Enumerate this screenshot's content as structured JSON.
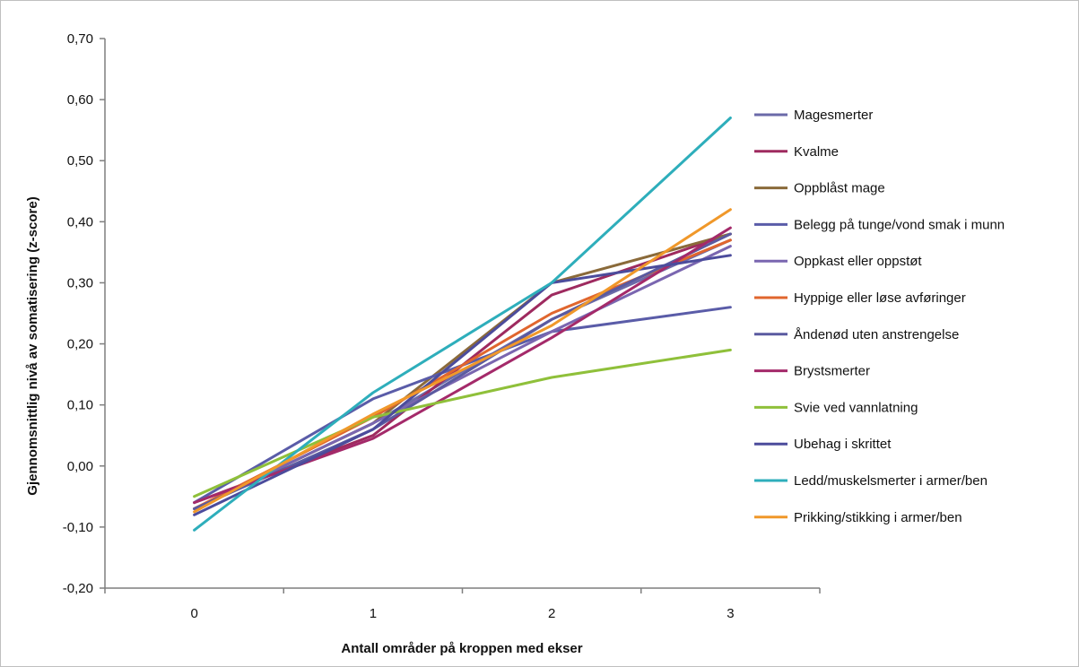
{
  "chart_data": {
    "type": "line",
    "title": "",
    "xlabel": "Antall områder på kroppen med ekser",
    "ylabel": "Gjennomsnittlig nivå av somatisering (z-score)",
    "x": [
      "0",
      "1",
      "2",
      "3"
    ],
    "ylim": [
      -0.2,
      0.7
    ],
    "y_ticks": [
      "-0,20",
      "-0,10",
      "0,00",
      "0,10",
      "0,20",
      "0,30",
      "0,40",
      "0,50",
      "0,60",
      "0,70"
    ],
    "y_tick_values": [
      -0.2,
      -0.1,
      0.0,
      0.1,
      0.2,
      0.3,
      0.4,
      0.5,
      0.6,
      0.7
    ],
    "grid": false,
    "legend_position": "right",
    "series": [
      {
        "name": "Magesmerter",
        "color": "#6b6aa8",
        "values": [
          -0.07,
          0.07,
          0.24,
          0.37
        ]
      },
      {
        "name": "Kvalme",
        "color": "#9e2a5f",
        "values": [
          -0.06,
          0.05,
          0.28,
          0.38
        ]
      },
      {
        "name": "Oppblåst mage",
        "color": "#8a6a3a",
        "values": [
          -0.07,
          0.07,
          0.3,
          0.38
        ]
      },
      {
        "name": "Belegg på tunge/vond smak i munn",
        "color": "#5a5ca8",
        "values": [
          -0.06,
          0.11,
          0.22,
          0.26
        ]
      },
      {
        "name": "Oppkast eller oppstøt",
        "color": "#7a66b0",
        "values": [
          -0.07,
          0.07,
          0.22,
          0.36
        ]
      },
      {
        "name": "Hyppige eller løse avføringer",
        "color": "#e0662e",
        "values": [
          -0.07,
          0.08,
          0.25,
          0.37
        ]
      },
      {
        "name": "Åndenød uten anstrengelse",
        "color": "#5a5aa0",
        "values": [
          -0.07,
          0.06,
          0.24,
          0.38
        ]
      },
      {
        "name": "Brystsmerter",
        "color": "#a42a6a",
        "values": [
          -0.06,
          0.045,
          0.21,
          0.39
        ]
      },
      {
        "name": "Svie ved vannlatning",
        "color": "#8fc03a",
        "values": [
          -0.05,
          0.08,
          0.145,
          0.19
        ]
      },
      {
        "name": "Ubehag i skrittet",
        "color": "#4c4c9c",
        "values": [
          -0.08,
          0.06,
          0.3,
          0.345
        ]
      },
      {
        "name": "Ledd/muskelsmerter i armer/ben",
        "color": "#2eaebb",
        "values": [
          -0.105,
          0.12,
          0.3,
          0.57
        ]
      },
      {
        "name": "Prikking/stikking i armer/ben",
        "color": "#f0982a",
        "values": [
          -0.075,
          0.085,
          0.23,
          0.42
        ]
      }
    ]
  }
}
